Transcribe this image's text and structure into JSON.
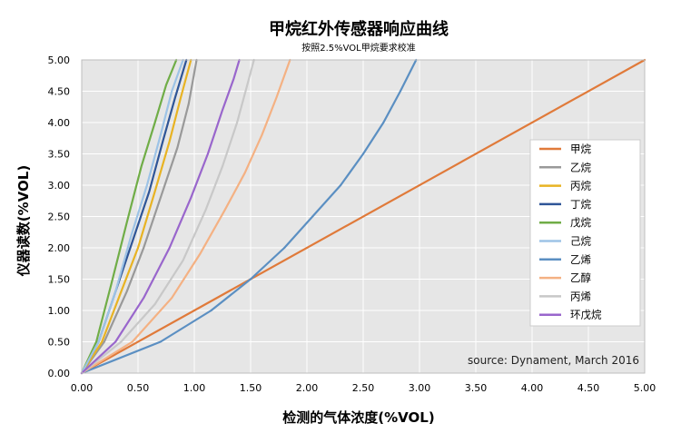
{
  "chart_data": {
    "type": "line",
    "title": "甲烷红外传感器响应曲线",
    "subtitle": "按照2.5%VOL甲烷要求校准",
    "xlabel": "检测的气体浓度(%VOL)",
    "ylabel": "仪器读数(%VOL)",
    "xlim": [
      0,
      5
    ],
    "ylim": [
      0,
      5
    ],
    "x_ticks": [
      "0.00",
      "0.50",
      "1.00",
      "1.50",
      "2.00",
      "2.50",
      "3.00",
      "3.50",
      "4.00",
      "4.50",
      "5.00"
    ],
    "y_ticks": [
      "0.00",
      "0.50",
      "1.00",
      "1.50",
      "2.00",
      "2.50",
      "3.00",
      "3.50",
      "4.00",
      "4.50",
      "5.00"
    ],
    "grid": true,
    "legend_position": "right",
    "source": "source: Dynament, March 2016",
    "colors": {
      "plot_background": "#e6e6e6",
      "grid": "#ffffff"
    },
    "series": [
      {
        "name": "甲烷",
        "color": "#e07a3a",
        "x": [
          0,
          5
        ],
        "y": [
          0,
          5
        ]
      },
      {
        "name": "乙烷",
        "color": "#999999",
        "x": [
          0,
          0.2,
          0.4,
          0.55,
          0.7,
          0.85,
          0.95,
          1.02
        ],
        "y": [
          0,
          0.5,
          1.3,
          2.0,
          2.8,
          3.6,
          4.3,
          5.0
        ]
      },
      {
        "name": "丙烷",
        "color": "#e8b323",
        "x": [
          0,
          0.18,
          0.35,
          0.5,
          0.65,
          0.78,
          0.88,
          0.97
        ],
        "y": [
          0,
          0.5,
          1.3,
          2.0,
          2.9,
          3.7,
          4.4,
          5.0
        ]
      },
      {
        "name": "丁烷",
        "color": "#2f5597",
        "x": [
          0,
          0.15,
          0.3,
          0.45,
          0.6,
          0.72,
          0.83,
          0.93
        ],
        "y": [
          0,
          0.5,
          1.3,
          2.1,
          2.9,
          3.7,
          4.4,
          5.0
        ]
      },
      {
        "name": "戊烷",
        "color": "#70ad47",
        "x": [
          0,
          0.13,
          0.26,
          0.4,
          0.53,
          0.65,
          0.75,
          0.84
        ],
        "y": [
          0,
          0.5,
          1.4,
          2.4,
          3.3,
          4.0,
          4.6,
          5.0
        ]
      },
      {
        "name": "己烷",
        "color": "#9dc3e6",
        "x": [
          0,
          0.15,
          0.3,
          0.44,
          0.58,
          0.7,
          0.8,
          0.9
        ],
        "y": [
          0,
          0.5,
          1.3,
          2.2,
          3.0,
          3.8,
          4.5,
          5.0
        ]
      },
      {
        "name": "乙烯",
        "color": "#5b8fc2",
        "x": [
          0,
          0.7,
          1.15,
          1.5,
          1.8,
          2.05,
          2.3,
          2.5,
          2.68,
          2.83,
          2.97
        ],
        "y": [
          0,
          0.5,
          1.0,
          1.5,
          2.0,
          2.5,
          3.0,
          3.5,
          4.0,
          4.5,
          5.0
        ]
      },
      {
        "name": "乙醇",
        "color": "#f4b183",
        "x": [
          0,
          0.45,
          0.8,
          1.05,
          1.27,
          1.45,
          1.6,
          1.73,
          1.85
        ],
        "y": [
          0,
          0.5,
          1.2,
          1.9,
          2.6,
          3.2,
          3.8,
          4.4,
          5.0
        ]
      },
      {
        "name": "丙烯",
        "color": "#c8c8c8",
        "x": [
          0,
          0.35,
          0.65,
          0.9,
          1.1,
          1.25,
          1.38,
          1.47,
          1.53
        ],
        "y": [
          0,
          0.5,
          1.1,
          1.8,
          2.6,
          3.3,
          4.0,
          4.6,
          5.0
        ]
      },
      {
        "name": "环戊烷",
        "color": "#9966cc",
        "x": [
          0,
          0.3,
          0.55,
          0.78,
          0.97,
          1.12,
          1.25,
          1.35,
          1.4
        ],
        "y": [
          0,
          0.5,
          1.2,
          2.0,
          2.8,
          3.5,
          4.2,
          4.7,
          5.0
        ]
      }
    ]
  }
}
